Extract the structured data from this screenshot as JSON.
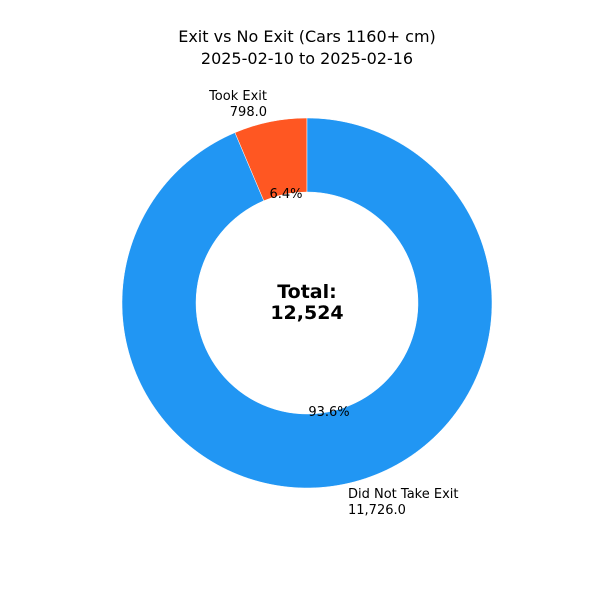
{
  "chart_data": {
    "type": "pie",
    "variant": "donut",
    "title_line1": "Exit vs No Exit (Cars 1160+ cm)",
    "title_line2": "2025-02-10 to 2025-02-16",
    "slices": [
      {
        "name": "Took Exit",
        "value": 798.0,
        "value_label": "798.0",
        "percent_label": "6.4%",
        "color": "#ff5722"
      },
      {
        "name": "Did Not Take Exit",
        "value": 11726.0,
        "value_label": "11,726.0",
        "percent_label": "93.6%",
        "color": "#2196f3"
      }
    ],
    "center_label_line1": "Total:",
    "center_label_line2": "12,524"
  }
}
